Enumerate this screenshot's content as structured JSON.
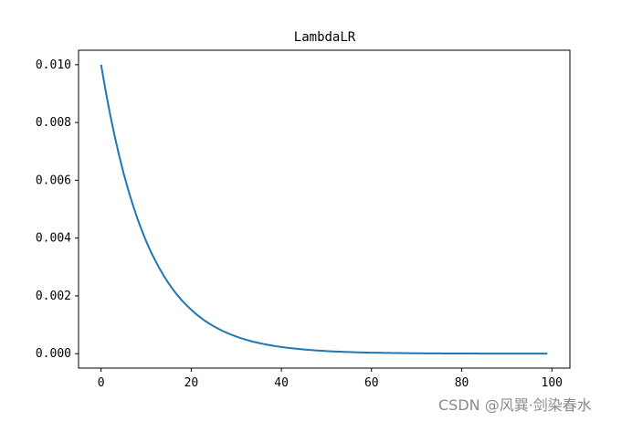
{
  "chart_data": {
    "type": "line",
    "title": "LambdaLR",
    "xlabel": "",
    "ylabel": "",
    "xlim": [
      -5,
      104
    ],
    "ylim": [
      -0.0005,
      0.0105
    ],
    "xticks": [
      0,
      20,
      40,
      60,
      80,
      100
    ],
    "xtick_labels": [
      "0",
      "20",
      "40",
      "60",
      "80",
      "100"
    ],
    "yticks": [
      0.0,
      0.002,
      0.004,
      0.006,
      0.008,
      0.01
    ],
    "ytick_labels": [
      "0.000",
      "0.002",
      "0.004",
      "0.006",
      "0.008",
      "0.010"
    ],
    "grid": false,
    "series": [
      {
        "color": "#1f77b4",
        "x": [
          0,
          1,
          2,
          3,
          4,
          5,
          6,
          7,
          8,
          9,
          10,
          11,
          12,
          13,
          14,
          15,
          16,
          17,
          18,
          19,
          20,
          21,
          22,
          23,
          24,
          25,
          26,
          27,
          28,
          29,
          30,
          31,
          32,
          33,
          34,
          35,
          36,
          37,
          38,
          39,
          40,
          41,
          42,
          43,
          44,
          45,
          46,
          47,
          48,
          49,
          50,
          51,
          52,
          53,
          54,
          55,
          56,
          57,
          58,
          59,
          60,
          61,
          62,
          63,
          64,
          65,
          66,
          67,
          68,
          69,
          70,
          71,
          72,
          73,
          74,
          75,
          76,
          77,
          78,
          79,
          80,
          81,
          82,
          83,
          84,
          85,
          86,
          87,
          88,
          89,
          90,
          91,
          92,
          93,
          94,
          95,
          96,
          97,
          98,
          99
        ],
        "y": [
          0.01,
          0.0091,
          0.00828,
          0.00754,
          0.00686,
          0.00624,
          0.00568,
          0.00517,
          0.0047,
          0.00428,
          0.00389,
          0.00354,
          0.00323,
          0.00294,
          0.00267,
          0.00243,
          0.00221,
          0.00201,
          0.00183,
          0.00167,
          0.00152,
          0.00138,
          0.00126,
          0.00114,
          0.00104,
          0.000947,
          0.000862,
          0.000785,
          0.000714,
          0.00065,
          0.000591,
          0.000538,
          0.00049,
          0.000445,
          0.000405,
          0.000369,
          0.000336,
          0.000305,
          0.000278,
          0.000253,
          0.00023,
          0.000209,
          0.000191,
          0.000174,
          0.000158,
          0.000144,
          0.000131,
          0.000119,
          0.000108,
          9.86e-05,
          8.97e-05,
          8.16e-05,
          7.43e-05,
          6.76e-05,
          6.15e-05,
          5.6e-05,
          5.1e-05,
          4.64e-05,
          4.22e-05,
          3.84e-05,
          3.5e-05,
          3.18e-05,
          2.89e-05,
          2.63e-05,
          2.4e-05,
          2.18e-05,
          1.98e-05,
          1.81e-05,
          1.64e-05,
          1.5e-05,
          1.36e-05,
          1.24e-05,
          1.13e-05,
          1.03e-05,
          9.3e-06,
          8.5e-06,
          7.7e-06,
          7e-06,
          6.4e-06,
          5.8e-06,
          5.3e-06,
          4.8e-06,
          4.4e-06,
          4e-06,
          3.6e-06,
          3.3e-06,
          3e-06,
          2.7e-06,
          2.5e-06,
          2.3e-06,
          2.1e-06,
          1.9e-06,
          1.7e-06,
          1.6e-06,
          1.4e-06,
          1.3e-06,
          1.2e-06,
          1.1e-06,
          1e-06,
          9e-07
        ]
      }
    ]
  },
  "watermark": "CSDN @风巽·剑染春水"
}
